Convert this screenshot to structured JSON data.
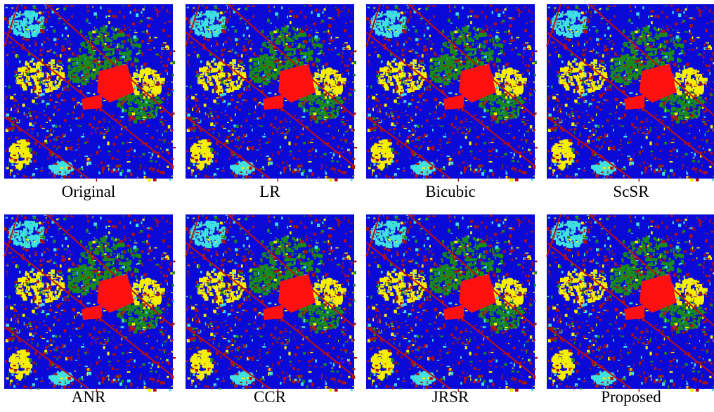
{
  "panels": [
    {
      "label": "Original"
    },
    {
      "label": "LR"
    },
    {
      "label": "Bicubic"
    },
    {
      "label": "ScSR"
    },
    {
      "label": "ANR"
    },
    {
      "label": "CCR"
    },
    {
      "label": "JRSR"
    },
    {
      "label": "Proposed"
    }
  ]
}
